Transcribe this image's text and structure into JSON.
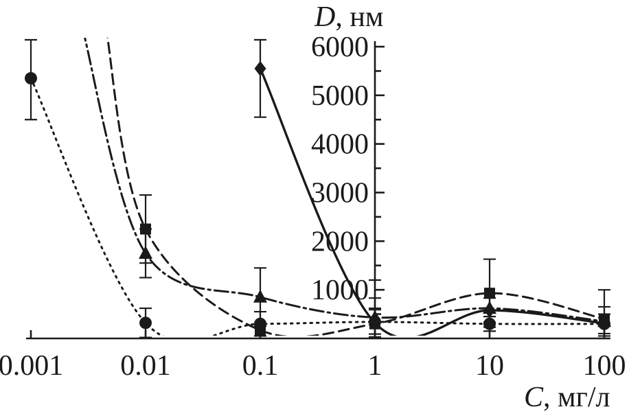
{
  "chart_data": {
    "type": "line",
    "title": "",
    "xlabel_var": "C",
    "xlabel_unit": ", мг/л",
    "ylabel_var": "D",
    "ylabel_unit": ", нм",
    "x_scale": "log",
    "xlim": [
      0.001,
      100
    ],
    "ylim": [
      0,
      6000
    ],
    "x_ticks": [
      0.001,
      0.01,
      0.1,
      1,
      10,
      100
    ],
    "x_tick_labels": [
      "0.001",
      "0.01",
      "0.1",
      "1",
      "10",
      "100"
    ],
    "y_ticks": [
      1000,
      2000,
      3000,
      4000,
      5000,
      6000
    ],
    "y_minor_step": 500,
    "grid": false,
    "legend": "none",
    "axis_color": "#1a1a1a",
    "background": "#ffffff",
    "series": [
      {
        "name": "circle-dotted",
        "marker": "circle",
        "line": "dotted",
        "points": [
          {
            "x": 0.001,
            "y": 5350,
            "err": 850
          },
          {
            "x": 0.01,
            "y": 320,
            "err": 300
          },
          {
            "x": 0.1,
            "y": 300,
            "err": 250
          },
          {
            "x": 1,
            "y": 340,
            "err": 250
          },
          {
            "x": 10,
            "y": 300,
            "err": 150
          },
          {
            "x": 100,
            "y": 300,
            "err": 200
          }
        ]
      },
      {
        "name": "square-dashed",
        "marker": "square",
        "line": "dashed",
        "points": [
          {
            "x": 0.0045,
            "y": 6400,
            "m": 0
          },
          {
            "x": 0.01,
            "y": 2250,
            "err": 700
          },
          {
            "x": 0.1,
            "y": 170,
            "err": 0
          },
          {
            "x": 1,
            "y": 300,
            "err": 900
          },
          {
            "x": 10,
            "y": 930,
            "err": 700
          },
          {
            "x": 100,
            "y": 400,
            "err": 600
          }
        ]
      },
      {
        "name": "triangle-dashdot",
        "marker": "triangle",
        "line": "dashdot",
        "points": [
          {
            "x": 0.0028,
            "y": 6400,
            "m": 0
          },
          {
            "x": 0.01,
            "y": 1750,
            "err": 500
          },
          {
            "x": 0.1,
            "y": 850,
            "err": 600
          },
          {
            "x": 1,
            "y": 430,
            "err": 400
          },
          {
            "x": 10,
            "y": 620,
            "err": 300
          },
          {
            "x": 100,
            "y": 350,
            "err": 300
          }
        ]
      },
      {
        "name": "diamond-solid",
        "marker": "diamond",
        "line": "solid",
        "points": [
          {
            "x": 0.1,
            "y": 5550,
            "err": 1000
          },
          {
            "x": 1,
            "y": 320,
            "err": 300
          },
          {
            "x": 10,
            "y": 580,
            "err": 250
          },
          {
            "x": 100,
            "y": 310,
            "err": 0
          }
        ]
      }
    ]
  }
}
